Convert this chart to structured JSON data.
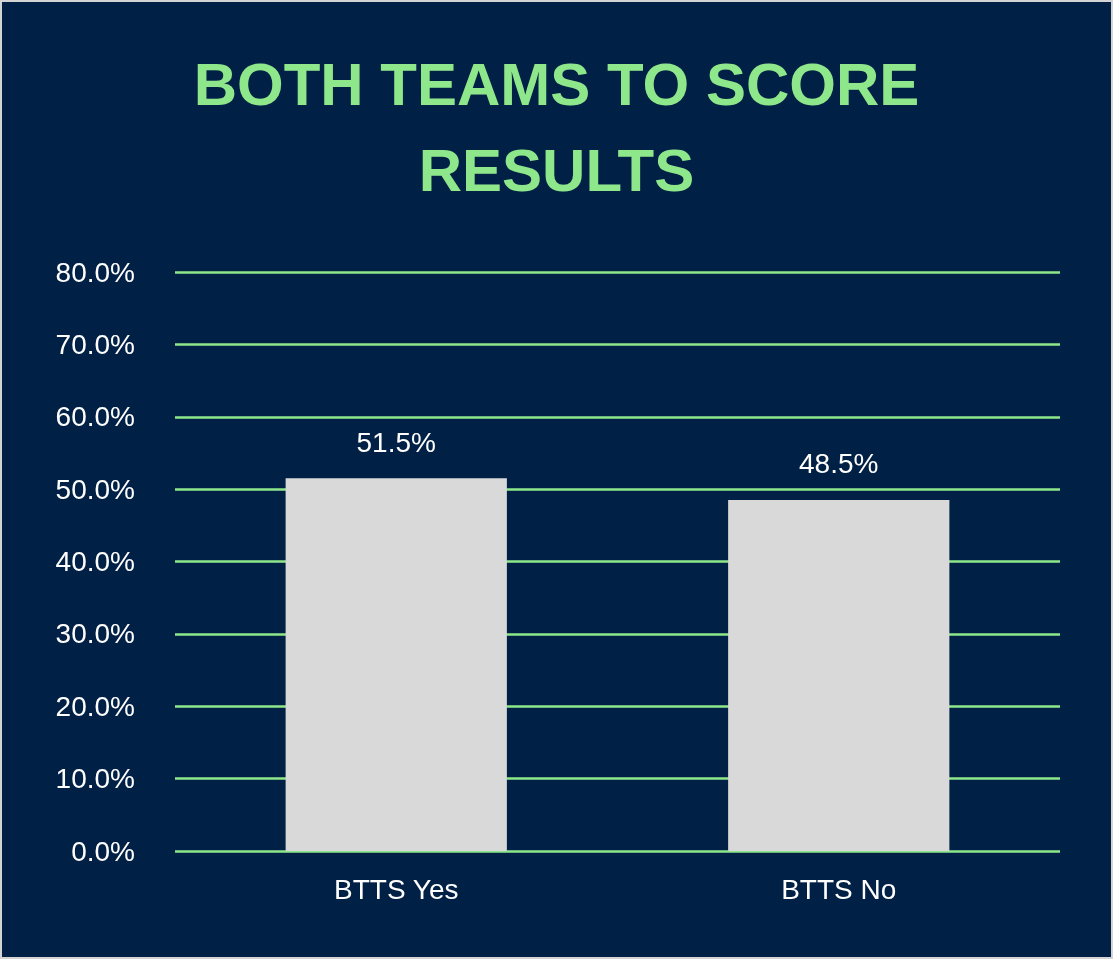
{
  "chart_data": {
    "type": "bar",
    "title": "BOTH TEAMS TO SCORE RESULTS",
    "categories": [
      "BTTS Yes",
      "BTTS No"
    ],
    "values": [
      51.5,
      48.5
    ],
    "color": "#d9d9d9",
    "value_labels": [
      "51.5%",
      "48.5%"
    ],
    "ylim": [
      0,
      80
    ],
    "yticks": [
      {
        "value": 0,
        "label": "0.0%"
      },
      {
        "value": 10,
        "label": "10.0%"
      },
      {
        "value": 20,
        "label": "20.0%"
      },
      {
        "value": 30,
        "label": "30.0%"
      },
      {
        "value": 40,
        "label": "40.0%"
      },
      {
        "value": 50,
        "label": "50.0%"
      },
      {
        "value": 60,
        "label": "60.0%"
      },
      {
        "value": 70,
        "label": "70.0%"
      },
      {
        "value": 80,
        "label": "80.0%"
      }
    ],
    "grid": true
  }
}
